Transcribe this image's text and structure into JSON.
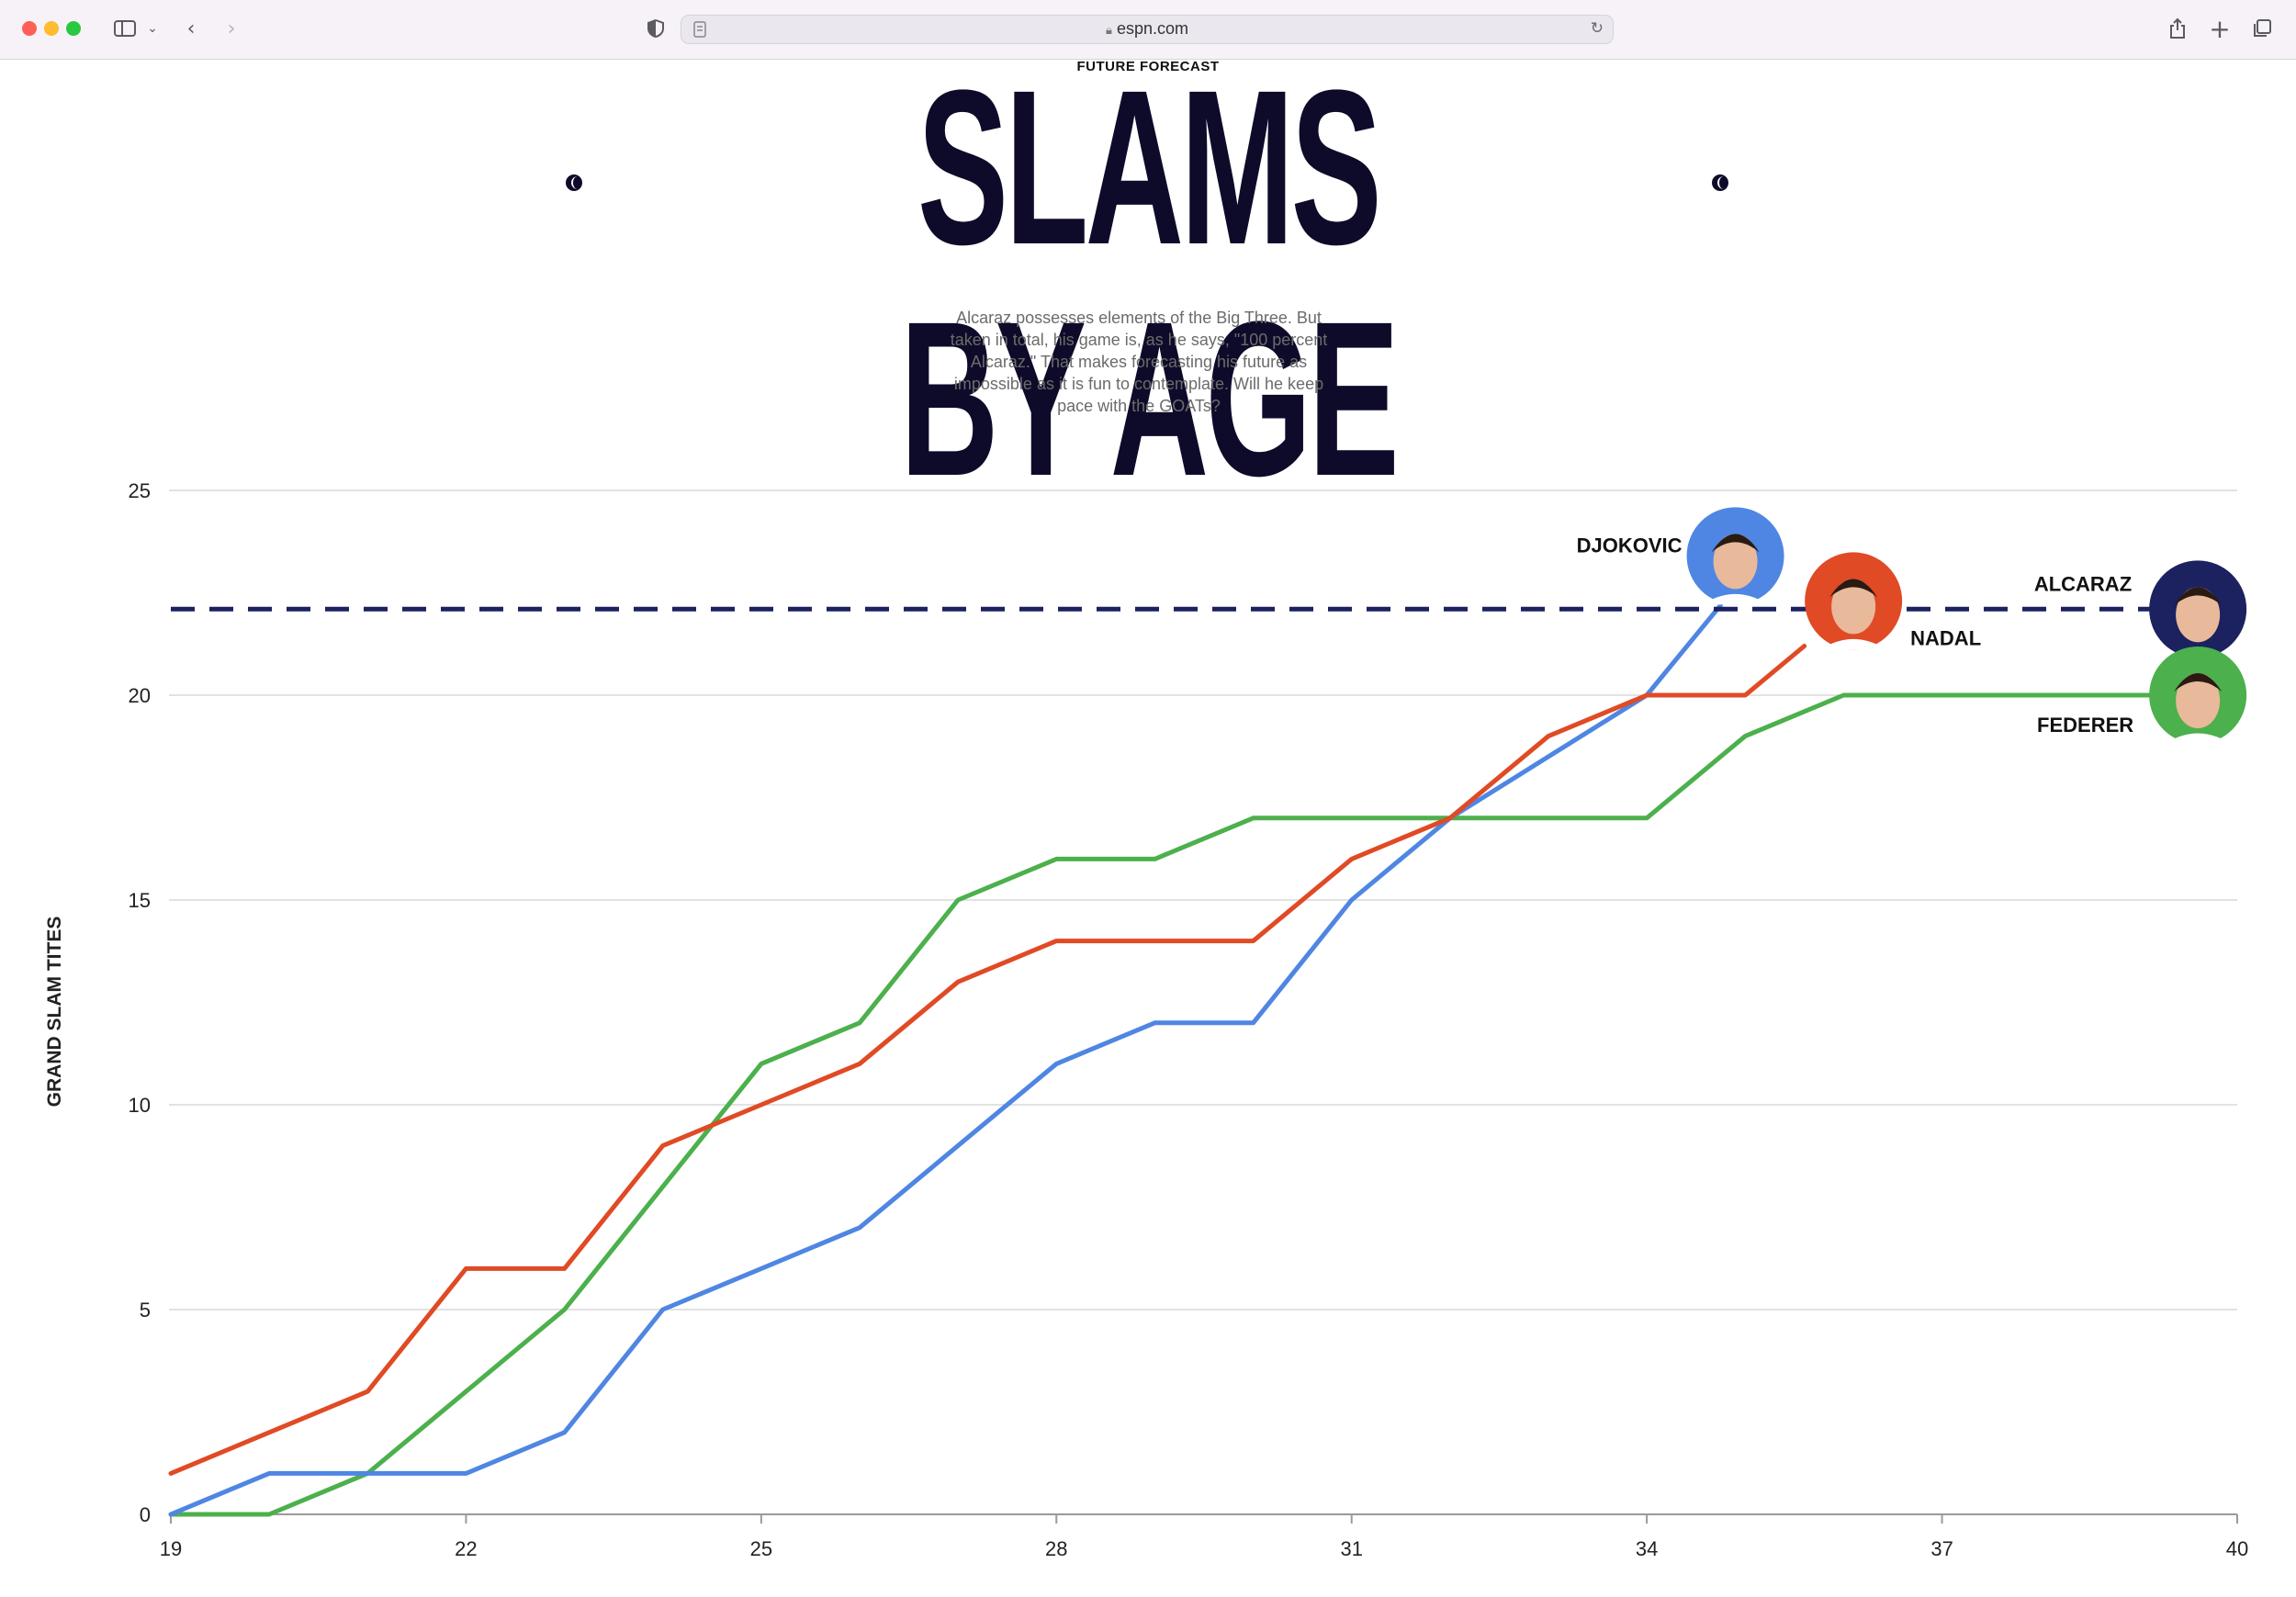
{
  "browser": {
    "url": "espn.com"
  },
  "article": {
    "kicker": "FUTURE FORECAST",
    "title": "SLAMS BY AGE",
    "intro": "Alcaraz possesses elements of the Big Three. But taken in total, his game is, as he says, \"100 percent Alcaraz.\" That makes forecasting his future as impossible as it is fun to contemplate. Will he keep pace with the GOATs?"
  },
  "chart_data": {
    "type": "line",
    "title": "SLAMS BY AGE",
    "xlabel": "",
    "ylabel": "GRAND SLAM TITES",
    "xlim": [
      19,
      40
    ],
    "ylim": [
      0,
      25
    ],
    "xticks": [
      19,
      22,
      25,
      28,
      31,
      34,
      37,
      40
    ],
    "yticks": [
      0,
      5,
      10,
      15,
      20,
      25
    ],
    "grid": true,
    "series": [
      {
        "name": "DJOKOVIC",
        "color": "#4f86e3",
        "x": [
          19,
          20,
          21,
          22,
          23,
          24,
          25,
          26,
          27,
          28,
          29,
          30,
          31,
          32,
          33,
          34,
          34.75
        ],
        "y": [
          0,
          1,
          1,
          1,
          2,
          5,
          6,
          7,
          9,
          11,
          12,
          12,
          15,
          17,
          18.5,
          20,
          22.2
        ]
      },
      {
        "name": "NADAL",
        "color": "#e04a25",
        "x": [
          19,
          20,
          21,
          22,
          23,
          24,
          25,
          26,
          27,
          28,
          29,
          30,
          31,
          32,
          33,
          34,
          35,
          35.6
        ],
        "y": [
          1,
          2,
          3,
          6,
          6,
          9,
          10,
          11,
          13,
          14,
          14,
          14,
          16,
          17,
          19,
          20,
          20,
          21.2
        ]
      },
      {
        "name": "FEDERER",
        "color": "#4cb04c",
        "x": [
          19,
          20,
          21,
          22,
          23,
          24,
          25,
          26,
          27,
          28,
          29,
          30,
          31,
          32,
          33,
          34,
          35,
          36,
          37,
          38,
          39.6
        ],
        "y": [
          0,
          0,
          1,
          3,
          5,
          8,
          11,
          12,
          15,
          16,
          16,
          17,
          17,
          17,
          17,
          17,
          19,
          20,
          20,
          20,
          20
        ]
      },
      {
        "name": "ALCARAZ",
        "color": "#1c2160",
        "style": "dashed",
        "x": [
          19,
          39.6
        ],
        "y": [
          22.1,
          22.1
        ]
      }
    ],
    "labels": [
      {
        "name": "DJOKOVIC",
        "bg": "#4f86e3"
      },
      {
        "name": "NADAL",
        "bg": "#e04a25"
      },
      {
        "name": "ALCARAZ",
        "bg": "#1c2160"
      },
      {
        "name": "FEDERER",
        "bg": "#4cb04c"
      }
    ]
  }
}
